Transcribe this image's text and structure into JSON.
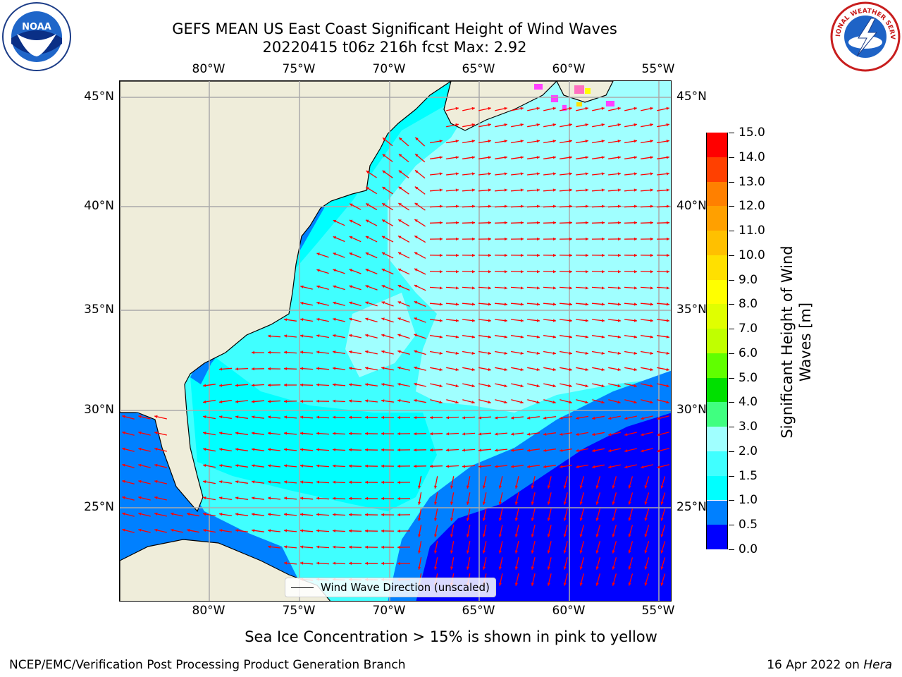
{
  "header": {
    "title_line1": "GEFS MEAN US East Coast Significant Height of Wind Waves",
    "title_line2": "20220415 t06z 216h fcst   Max: 2.92"
  },
  "logos": {
    "left": {
      "icon": "noaa-logo",
      "text": "NOAA"
    },
    "right": {
      "icon": "nws-logo",
      "text": "NATIONAL WEATHER SERVICE"
    }
  },
  "map": {
    "projection": "plate-carree",
    "lon_range": [
      -85,
      -54.2
    ],
    "lat_range": [
      20.5,
      45.8
    ],
    "lon_ticks": [
      {
        "value": -80,
        "label": "80°W"
      },
      {
        "value": -75,
        "label": "75°W"
      },
      {
        "value": -70,
        "label": "70°W"
      },
      {
        "value": -65,
        "label": "65°W"
      },
      {
        "value": -60,
        "label": "60°W"
      },
      {
        "value": -55,
        "label": "55°W"
      }
    ],
    "lat_ticks": [
      {
        "value": 45,
        "label": "45°N"
      },
      {
        "value": 40,
        "label": "40°N"
      },
      {
        "value": 35,
        "label": "35°N"
      },
      {
        "value": 30,
        "label": "30°N"
      },
      {
        "value": 25,
        "label": "25°N"
      }
    ],
    "grid": true,
    "land_color": "#efedda",
    "arrow_color": "#ff0000",
    "legend": {
      "label": "Wind Wave Direction (unscaled)",
      "placement": "lower-center"
    }
  },
  "colorbar": {
    "label": "Significant Height of Wind Waves [m]",
    "levels": [
      0.0,
      0.5,
      1.0,
      1.5,
      2.0,
      3.0,
      4.0,
      5.0,
      6.0,
      7.0,
      8.0,
      9.0,
      10.0,
      11.0,
      12.0,
      13.0,
      14.0,
      15.0
    ],
    "tick_labels": [
      "0.0",
      "0.5",
      "1.0",
      "1.5",
      "2.0",
      "3.0",
      "4.0",
      "5.0",
      "6.0",
      "7.0",
      "8.0",
      "9.0",
      "10.0",
      "11.0",
      "12.0",
      "13.0",
      "14.0",
      "15.0"
    ],
    "colors": [
      "#0000ff",
      "#0080ff",
      "#00ffff",
      "#40ffff",
      "#a0ffff",
      "#40ff80",
      "#00e000",
      "#60ff00",
      "#c0ff00",
      "#e0ff00",
      "#ffff00",
      "#ffe000",
      "#ffc000",
      "#ffa000",
      "#ff8000",
      "#ff4000",
      "#ff0000"
    ]
  },
  "notes": {
    "ice": "Sea Ice Concentration > 15% is shown in pink to yellow"
  },
  "footer": {
    "left": "NCEP/EMC/Verification Post Processing Product Generation Branch",
    "right_date": "16 Apr 2022 on",
    "right_host": "Hera"
  }
}
